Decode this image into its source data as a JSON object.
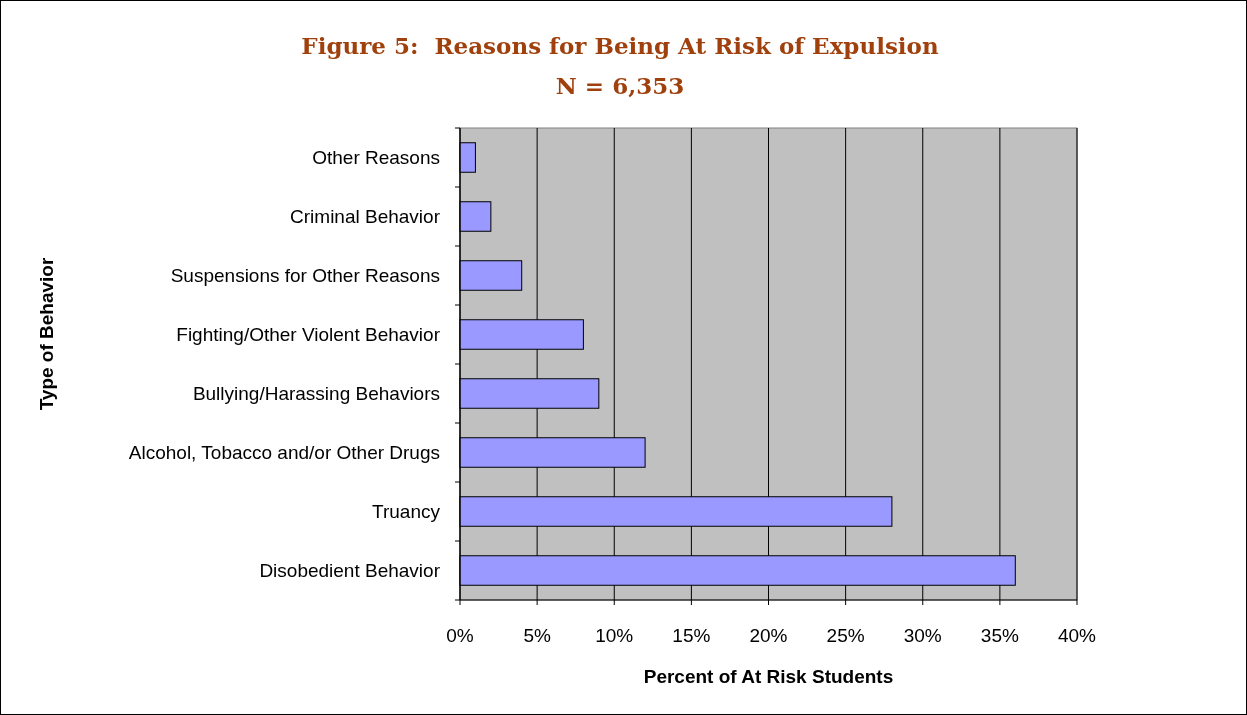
{
  "chart_data": {
    "type": "bar",
    "orientation": "horizontal",
    "title": "Figure 5:  Reasons for Being At Risk of Expulsion",
    "subtitle": "N = 6,353",
    "xlabel": "Percent of At Risk Students",
    "ylabel": "Type of Behavior",
    "categories": [
      "Other Reasons",
      "Criminal Behavior",
      "Suspensions for Other Reasons",
      "Fighting/Other Violent Behavior",
      "Bullying/Harassing Behaviors",
      "Alcohol, Tobacco and/or Other Drugs",
      "Truancy",
      "Disobedient Behavior"
    ],
    "values": [
      1,
      2,
      4,
      8,
      9,
      12,
      28,
      36
    ],
    "color": "#9999ff",
    "xlim": [
      0,
      40
    ],
    "xticks": [
      {
        "value": 0,
        "label": "0%"
      },
      {
        "value": 5,
        "label": "5%"
      },
      {
        "value": 10,
        "label": "10%"
      },
      {
        "value": 15,
        "label": "15%"
      },
      {
        "value": 20,
        "label": "20%"
      },
      {
        "value": 25,
        "label": "25%"
      },
      {
        "value": 30,
        "label": "30%"
      },
      {
        "value": 35,
        "label": "35%"
      },
      {
        "value": 40,
        "label": "40%"
      }
    ],
    "grid": "x"
  }
}
